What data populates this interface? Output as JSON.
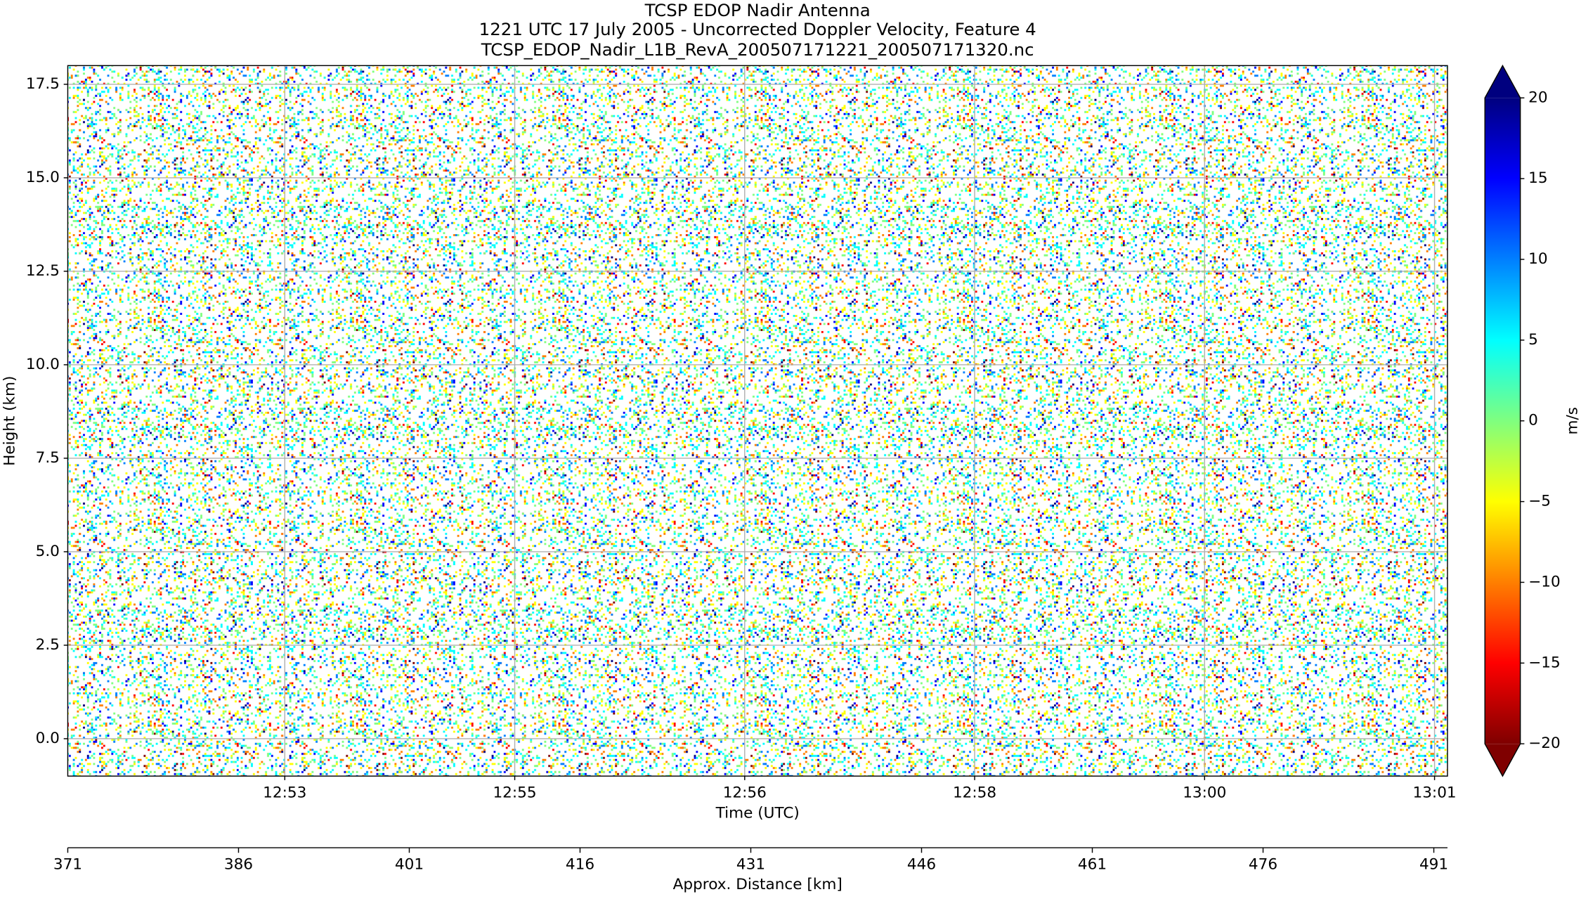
{
  "chart_data": {
    "type": "heatmap",
    "title": [
      "TCSP EDOP Nadir Antenna",
      "1221 UTC 17 July 2005 - Uncorrected Doppler Velocity, Feature 4",
      "TCSP_EDOP_Nadir_L1B_RevA_200507171221_200507171320.nc"
    ],
    "xlabel": "Time (UTC)",
    "ylabel": "Height (km)",
    "xlim": [
      52.19,
      61.79
    ],
    "xticks": [
      {
        "value": 53.7,
        "label": "12:53"
      },
      {
        "value": 55.3,
        "label": "12:55"
      },
      {
        "value": 56.9,
        "label": "12:56"
      },
      {
        "value": 58.5,
        "label": "12:58"
      },
      {
        "value": 60.1,
        "label": "13:00"
      },
      {
        "value": 61.7,
        "label": "13:01"
      }
    ],
    "ylim": [
      -1,
      18
    ],
    "yticks": [
      {
        "value": 0,
        "label": "0.0"
      },
      2.5,
      {
        "value": 5,
        "label": "5.0"
      },
      7.5,
      {
        "value": 10,
        "label": "10.0"
      },
      12.5,
      {
        "value": 15,
        "label": "15.0"
      },
      17.5
    ],
    "grid": true,
    "x2label": "Approx. Distance [km]",
    "x2lim": [
      371,
      492.2
    ],
    "x2ticks": [
      371,
      386,
      401,
      416,
      431,
      446,
      461,
      476,
      491
    ],
    "colorbar": {
      "label": "m/s",
      "lim": [
        -20,
        20
      ],
      "ticks": [
        {
          "value": -20,
          "label": "−20"
        },
        {
          "value": -15,
          "label": "−15"
        },
        {
          "value": -10,
          "label": "−10"
        },
        {
          "value": -5,
          "label": "−5"
        },
        0,
        5,
        10,
        15,
        20
      ],
      "colormap": [
        "#7f0000",
        "#ff0000",
        "#ff7f00",
        "#ffff00",
        "#7fff7f",
        "#00ffff",
        "#007fff",
        "#0000ff",
        "#00007f"
      ],
      "extend": "both"
    }
  }
}
